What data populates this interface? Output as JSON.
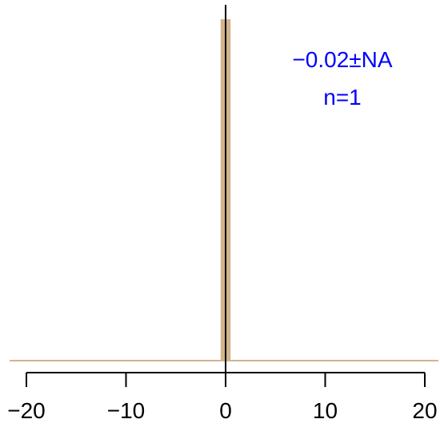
{
  "chart_data": {
    "type": "bar",
    "title": "",
    "xlabel": "",
    "ylabel": "",
    "xlim": [
      -20,
      20
    ],
    "xticks": [
      -20,
      -10,
      0,
      10,
      20
    ],
    "xtick_labels": [
      "−20",
      "−10",
      "0",
      "10",
      "20"
    ],
    "bins": [
      {
        "x0": -0.5,
        "x1": 0.5,
        "count": 1
      }
    ],
    "mean": -0.02,
    "sd": "NA",
    "n": 1,
    "annotation": {
      "line1": "−0.02±NA",
      "line2": "n=1"
    },
    "reference_line_x": 0,
    "colors": {
      "bar": "#d2b48c",
      "baseline": "#d2b48c",
      "annotation": "#0000ff",
      "axis": "#000000"
    }
  }
}
